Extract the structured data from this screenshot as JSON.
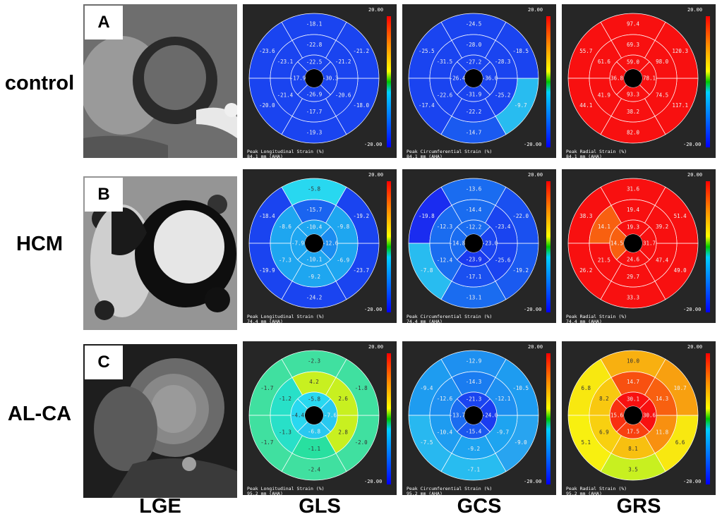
{
  "row_labels": {
    "control": "control",
    "hcm": "HCM",
    "alca": "AL-CA"
  },
  "column_labels": {
    "lge": "LGE",
    "gls": "GLS",
    "gcs": "GCS",
    "grs": "GRS"
  },
  "panel_letters": {
    "a": "A",
    "b": "B",
    "c": "C"
  },
  "scale": {
    "max": "20.00",
    "min": "-20.00"
  },
  "caption_titles": {
    "gls": "Peak Longitudinal Strain (%)",
    "gcs": "Peak Circumferential Strain (%)",
    "grs": "Peak Radial Strain (%)"
  },
  "depths": {
    "control": "84.1 mm (AHA)",
    "hcm": "74.4 mm (AHA)",
    "alca": "95.2 mm (AHA)"
  },
  "colors": {
    "background": "#ffffff",
    "panel_bg": "#262626",
    "gridline": "#ffffff"
  },
  "segment_order": "AHA 17-segment bullseye: basal 1-6, mid 7-12, apical 13-16, starting at anterior (top), counter-clockwise",
  "bullseyes": [
    {
      "id": "control-gls",
      "row": "control",
      "type": "gls",
      "values": [
        "-18.1",
        "-23.6",
        "-20.0",
        "-19.3",
        "-18.0",
        "-21.2",
        "-22.8",
        "-23.1",
        "-21.4",
        "-17.7",
        "-20.6",
        "-21.2",
        "-22.5",
        "-17.9",
        "-26.9",
        "-30.3"
      ],
      "colors": [
        "#1a44f0",
        "#1a44f0",
        "#1a44f0",
        "#1a44f0",
        "#1a44f0",
        "#1a44f0",
        "#1a44f0",
        "#1a44f0",
        "#1a44f0",
        "#1a44f0",
        "#1a44f0",
        "#1a44f0",
        "#1a44f0",
        "#1a44f0",
        "#1a44f0",
        "#1a44f0"
      ]
    },
    {
      "id": "control-gcs",
      "row": "control",
      "type": "gcs",
      "values": [
        "-24.5",
        "-25.5",
        "-17.4",
        "-14.7",
        "-9.7",
        "-18.5",
        "-28.0",
        "-31.5",
        "-22.6",
        "-22.2",
        "-25.2",
        "-28.3",
        "-27.2",
        "-26.4",
        "-31.9",
        "-36.0"
      ],
      "colors": [
        "#1a44f0",
        "#1a44f0",
        "#1a44f0",
        "#1a5af0",
        "#28bcf0",
        "#1a44f0",
        "#1a44f0",
        "#1a44f0",
        "#1a44f0",
        "#1a44f0",
        "#1a44f0",
        "#1a44f0",
        "#1a44f0",
        "#1a44f0",
        "#1a44f0",
        "#1a44f0"
      ]
    },
    {
      "id": "control-grs",
      "row": "control",
      "type": "grs",
      "values": [
        "97.4",
        "55.7",
        "44.1",
        "82.0",
        "117.1",
        "120.3",
        "69.3",
        "61.6",
        "41.9",
        "38.2",
        "74.5",
        "98.0",
        "59.0",
        "36.8",
        "93.3",
        "78.1"
      ],
      "colors": [
        "#f81010",
        "#f81010",
        "#f81010",
        "#f81010",
        "#f81010",
        "#f81010",
        "#f81010",
        "#f81010",
        "#f81010",
        "#f81010",
        "#f81010",
        "#f81010",
        "#f81010",
        "#f81010",
        "#f81010",
        "#f81010"
      ]
    },
    {
      "id": "hcm-gls",
      "row": "hcm",
      "type": "gls",
      "values": [
        "-5.8",
        "-18.4",
        "-19.9",
        "-24.2",
        "-23.7",
        "-19.2",
        "-15.7",
        "-8.6",
        "-7.3",
        "-9.2",
        "-6.9",
        "-9.8",
        "-10.4",
        "-7.9",
        "-10.1",
        "-12.6"
      ],
      "colors": [
        "#28d8f0",
        "#1a44f0",
        "#1a44f0",
        "#1a44f0",
        "#1a44f0",
        "#1a44f0",
        "#1a64f0",
        "#1ea6f0",
        "#1ea6f0",
        "#1ea6f0",
        "#1ea6f0",
        "#1ea6f0",
        "#1ea6f0",
        "#1ea6f0",
        "#1ea6f0",
        "#1a8cf0"
      ]
    },
    {
      "id": "hcm-gcs",
      "row": "hcm",
      "type": "gcs",
      "values": [
        "-13.6",
        "-19.8",
        "-7.8",
        "-13.1",
        "-19.2",
        "-22.0",
        "-14.4",
        "-12.3",
        "-12.4",
        "-17.1",
        "-25.6",
        "-23.4",
        "-12.2",
        "-14.8",
        "-23.9",
        "-23.0"
      ],
      "colors": [
        "#1a6cf0",
        "#1a2cf0",
        "#28bcf0",
        "#1a6cf0",
        "#1a5af0",
        "#1a50f0",
        "#1a6cf0",
        "#1a6cf0",
        "#1a6cf0",
        "#1a50f0",
        "#1a44f0",
        "#1a44f0",
        "#1a6cf0",
        "#1a6cf0",
        "#1a3af0",
        "#1a44f0"
      ]
    },
    {
      "id": "hcm-grs",
      "row": "hcm",
      "type": "grs",
      "values": [
        "31.6",
        "38.3",
        "26.2",
        "33.3",
        "49.0",
        "51.4",
        "19.4",
        "14.1",
        "21.5",
        "29.7",
        "47.4",
        "39.2",
        "19.3",
        "14.5",
        "24.6",
        "31.7"
      ],
      "colors": [
        "#f81010",
        "#f81010",
        "#f81010",
        "#f81010",
        "#f81010",
        "#f81010",
        "#f81010",
        "#f86010",
        "#f81010",
        "#f81010",
        "#f81010",
        "#f81010",
        "#f81010",
        "#f86010",
        "#f81010",
        "#f81010"
      ]
    },
    {
      "id": "alca-gls",
      "row": "alca",
      "type": "gls",
      "values": [
        "-2.3",
        "-1.7",
        "-1.7",
        "-2.4",
        "-2.0",
        "-1.8",
        "4.2",
        "-1.2",
        "-1.3",
        "-1.1",
        "2.8",
        "2.6",
        "-5.8",
        "-4.4",
        "-6.8",
        "-7.6"
      ],
      "colors": [
        "#40e0a0",
        "#40e0a0",
        "#40e0a0",
        "#40e0a0",
        "#40e0a0",
        "#40e0a0",
        "#c8f020",
        "#28e0c8",
        "#28e0c8",
        "#28e0a0",
        "#c8f020",
        "#c8f020",
        "#28d8f0",
        "#28d8f0",
        "#28c8f0",
        "#28c8f0"
      ]
    },
    {
      "id": "alca-gcs",
      "row": "alca",
      "type": "gcs",
      "values": [
        "-12.9",
        "-9.4",
        "-7.5",
        "-7.1",
        "-9.0",
        "-10.5",
        "-14.3",
        "-12.6",
        "-10.4",
        "-9.2",
        "-9.7",
        "-12.1",
        "-21.3",
        "-13.7",
        "-15.4",
        "-24.0"
      ],
      "colors": [
        "#1e90f0",
        "#1e9cf0",
        "#28b8f0",
        "#28bcf0",
        "#28a4f0",
        "#1e9cf0",
        "#1a7cf0",
        "#1e90f0",
        "#1e9cf0",
        "#1ea4f0",
        "#1ea4f0",
        "#1e90f0",
        "#1a44f0",
        "#1a6cf0",
        "#1a58f0",
        "#1a3cf0"
      ]
    },
    {
      "id": "alca-grs",
      "row": "alca",
      "type": "grs",
      "values": [
        "10.0",
        "6.8",
        "5.1",
        "3.5",
        "6.6",
        "10.7",
        "14.7",
        "8.2",
        "6.9",
        "8.1",
        "11.8",
        "14.3",
        "30.1",
        "15.6",
        "17.5",
        "30.6"
      ],
      "colors": [
        "#f8b010",
        "#f8e810",
        "#f8f010",
        "#c8f020",
        "#f8e810",
        "#f8a010",
        "#f85010",
        "#f8c810",
        "#f8d010",
        "#f8c010",
        "#f89010",
        "#f86010",
        "#f81010",
        "#f83010",
        "#f84010",
        "#f81010"
      ]
    }
  ]
}
